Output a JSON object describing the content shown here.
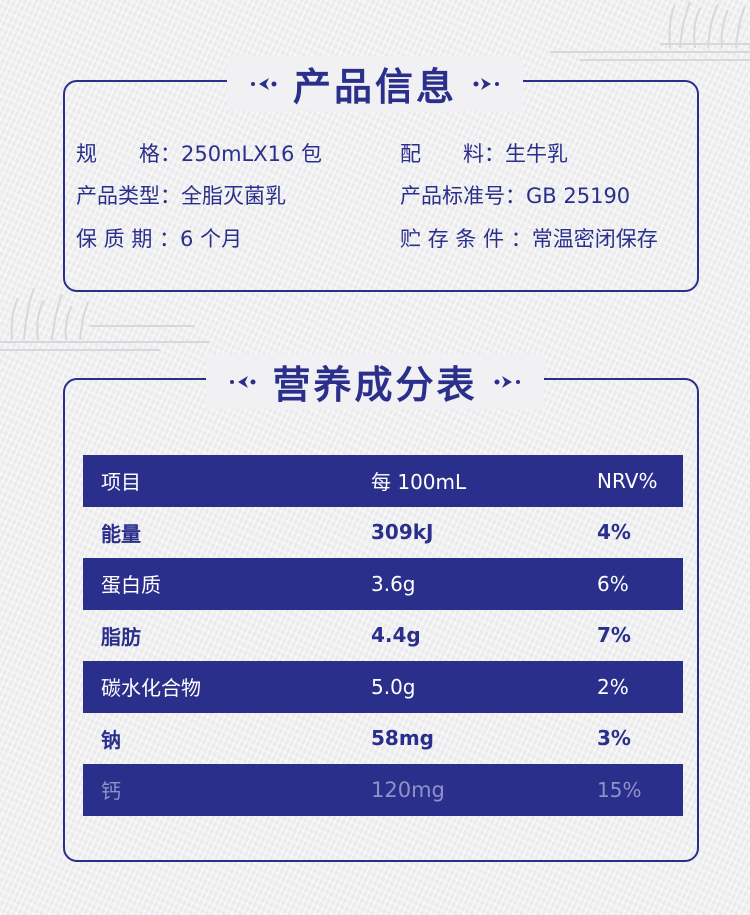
{
  "product_info": {
    "title": "产品信息",
    "rows": [
      {
        "left_label": "规　　格：",
        "left_value": "250mLX16 包",
        "right_label": "配　　料：",
        "right_value": "生牛乳"
      },
      {
        "left_label": "产品类型：",
        "left_value": "全脂灭菌乳",
        "right_label": "产品标准号：",
        "right_value": "GB 25190"
      },
      {
        "left_label": "保 质 期 ：",
        "left_value": "6 个月",
        "right_label": "贮 存 条 件 ：",
        "right_value": "常温密闭保存"
      }
    ]
  },
  "nutrition": {
    "title": "营养成分表",
    "header": {
      "item": "项目",
      "per": "每 100mL",
      "nrv": "NRV%"
    },
    "rows": [
      {
        "item": "能量",
        "per": "309kJ",
        "nrv": "4%"
      },
      {
        "item": "蛋白质",
        "per": "3.6g",
        "nrv": "6%"
      },
      {
        "item": "脂肪",
        "per": "4.4g",
        "nrv": "7%"
      },
      {
        "item": "碳水化合物",
        "per": "5.0g",
        "nrv": "2%"
      },
      {
        "item": "钠",
        "per": "58mg",
        "nrv": "3%"
      },
      {
        "item": "钙",
        "per": "120mg",
        "nrv": "15%"
      }
    ]
  },
  "colors": {
    "brand": "#2b2f8c",
    "background": "#f1f1f3",
    "faded_text": "#8e92c8"
  }
}
